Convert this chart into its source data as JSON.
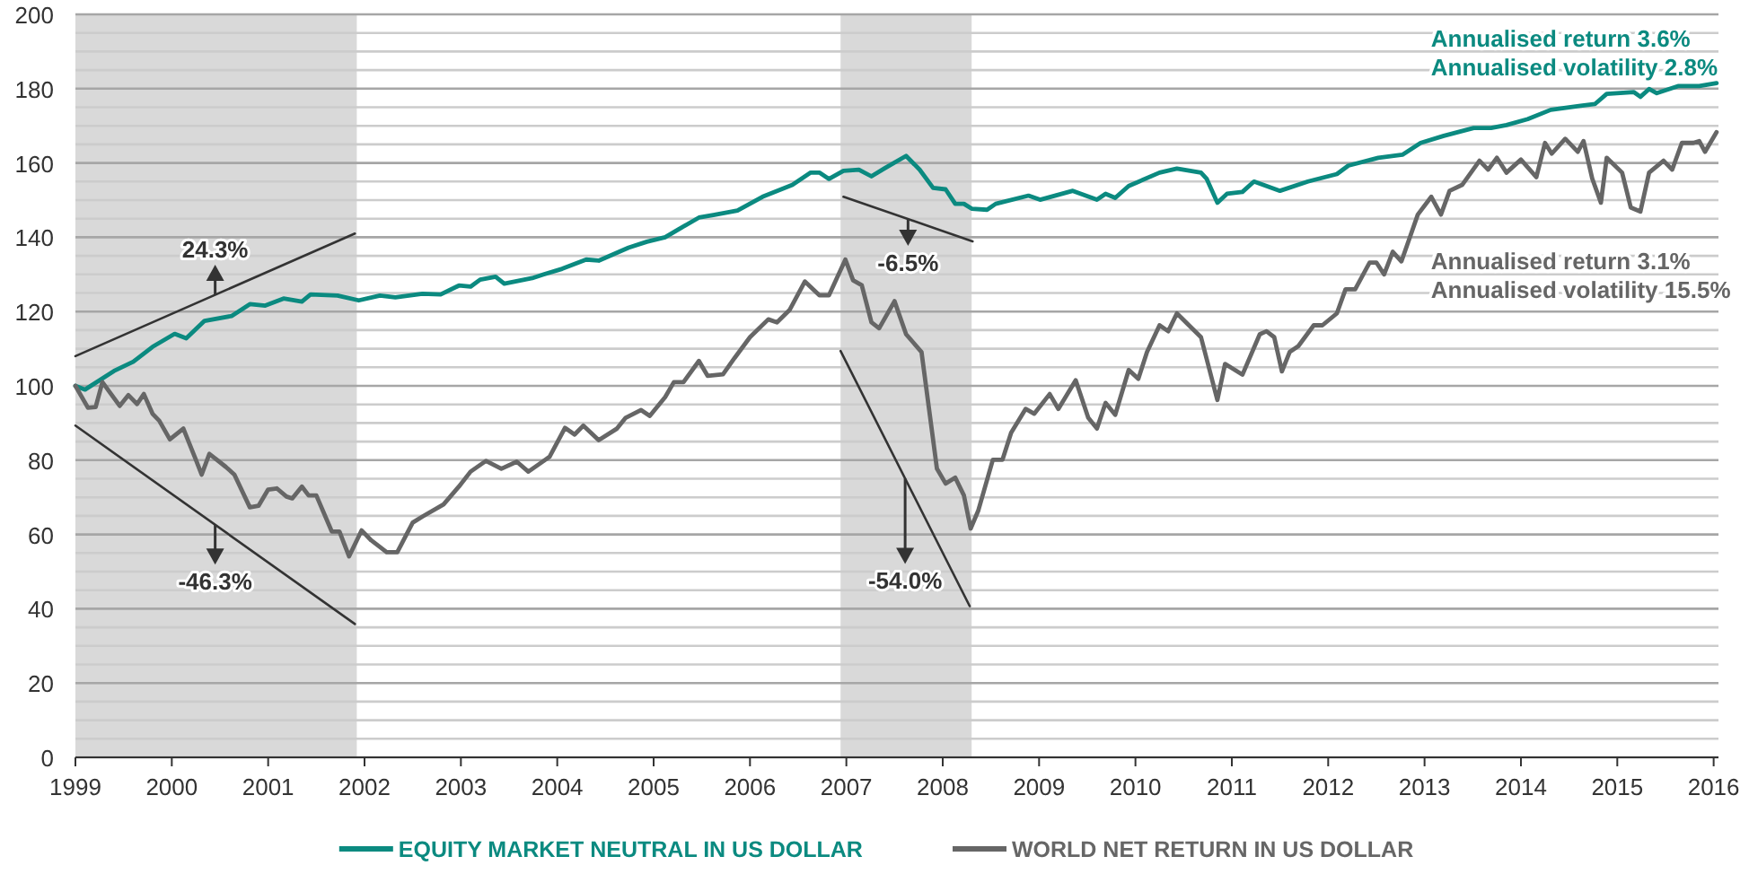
{
  "chart_data": {
    "type": "line",
    "xlim": [
      1999,
      2016.05
    ],
    "ylim": [
      0,
      200
    ],
    "xticks": [
      1999,
      2000,
      2001,
      2002,
      2003,
      2004,
      2005,
      2006,
      2007,
      2008,
      2009,
      2010,
      2011,
      2012,
      2013,
      2014,
      2015,
      2016
    ],
    "yticks": [
      0,
      {
        "value": 5,
        "label": null
      },
      {
        "value": 10,
        "label": null
      },
      {
        "value": 15,
        "label": null
      },
      20,
      {
        "value": 25,
        "label": null
      },
      {
        "value": 30,
        "label": null
      },
      {
        "value": 35,
        "label": null
      },
      40,
      {
        "value": 45,
        "label": null
      },
      {
        "value": 50,
        "label": null
      },
      {
        "value": 55,
        "label": null
      },
      60,
      {
        "value": 65,
        "label": null
      },
      {
        "value": 70,
        "label": null
      },
      {
        "value": 75,
        "label": null
      },
      80,
      {
        "value": 85,
        "label": null
      },
      {
        "value": 90,
        "label": null
      },
      {
        "value": 95,
        "label": null
      },
      100,
      {
        "value": 105,
        "label": null
      },
      {
        "value": 110,
        "label": null
      },
      {
        "value": 115,
        "label": null
      },
      120,
      {
        "value": 125,
        "label": null
      },
      {
        "value": 130,
        "label": null
      },
      {
        "value": 135,
        "label": null
      },
      140,
      {
        "value": 145,
        "label": null
      },
      {
        "value": 150,
        "label": null
      },
      {
        "value": 155,
        "label": null
      },
      160,
      {
        "value": 165,
        "label": null
      },
      {
        "value": 170,
        "label": null
      },
      {
        "value": 175,
        "label": null
      },
      180,
      {
        "value": 185,
        "label": null
      },
      {
        "value": 190,
        "label": null
      },
      {
        "value": 195,
        "label": null
      },
      200
    ],
    "grid": "y",
    "legend": "bottom",
    "bands": [
      {
        "axis": "x",
        "from": 1999,
        "to": 2001.92,
        "color": "#d9d9d9"
      },
      {
        "axis": "x",
        "from": 2006.94,
        "to": 2008.3,
        "color": "#d9d9d9"
      }
    ],
    "series": [
      {
        "name": "EQUITY MARKET NEUTRAL IN US DOLLAR",
        "color": "#0b8a80",
        "x": [
          1999,
          1999.1,
          1999.4,
          1999.6,
          1999.8,
          2000.03,
          2000.15,
          2000.34,
          2000.62,
          2000.81,
          2000.97,
          2001.16,
          2001.35,
          2001.44,
          2001.72,
          2001.94,
          2002.16,
          2002.32,
          2002.6,
          2002.79,
          2002.98,
          2003.1,
          2003.2,
          2003.36,
          2003.45,
          2003.74,
          2003.86,
          2004.05,
          2004.3,
          2004.43,
          2004.74,
          2004.93,
          2005.12,
          2005.25,
          2005.47,
          2005.62,
          2005.87,
          2006.13,
          2006.44,
          2006.63,
          2006.72,
          2006.82,
          2006.97,
          2007.13,
          2007.26,
          2007.4,
          2007.62,
          2007.76,
          2007.9,
          2008.03,
          2008.13,
          2008.22,
          2008.3,
          2008.46,
          2008.55,
          2008.89,
          2009.01,
          2009.35,
          2009.6,
          2009.69,
          2009.79,
          2009.93,
          2010.25,
          2010.43,
          2010.68,
          2010.74,
          2010.85,
          2010.95,
          2011.11,
          2011.23,
          2011.5,
          2011.79,
          2012.09,
          2012.21,
          2012.52,
          2012.77,
          2012.96,
          2013.2,
          2013.51,
          2013.69,
          2013.85,
          2014.07,
          2014.31,
          2014.62,
          2014.77,
          2014.89,
          2015.17,
          2015.24,
          2015.33,
          2015.41,
          2015.63,
          2015.85,
          2016.03
        ],
        "values": [
          100,
          99,
          104,
          106.5,
          110.5,
          114,
          112.8,
          117.5,
          118.8,
          122,
          121.6,
          123.5,
          122.7,
          124.6,
          124.3,
          123,
          124.3,
          123.8,
          124.8,
          124.6,
          127,
          126.7,
          128.6,
          129.4,
          127.5,
          129,
          130,
          131.5,
          134,
          133.7,
          137.2,
          138.8,
          140,
          142,
          145.3,
          146,
          147.2,
          150.9,
          154.1,
          157.4,
          157.4,
          155.7,
          157.9,
          158.2,
          156.4,
          158.6,
          161.9,
          158.2,
          153.3,
          152.9,
          149,
          149,
          147.7,
          147.4,
          149,
          151.2,
          150.1,
          152.5,
          150.1,
          151.7,
          150.6,
          153.8,
          157.4,
          158.5,
          157.4,
          155.7,
          149.3,
          151.7,
          152.2,
          155,
          152.5,
          155,
          157,
          159.3,
          161.4,
          162.2,
          165.4,
          167.3,
          169.4,
          169.4,
          170.2,
          171.8,
          174.3,
          175.4,
          175.9,
          178.6,
          179.1,
          177.8,
          179.9,
          178.8,
          180.7,
          180.7,
          181.5
        ]
      },
      {
        "name": "WORLD NET RETURN IN US DOLLAR",
        "color": "#666666",
        "x": [
          1999,
          1999.13,
          1999.21,
          1999.28,
          1999.46,
          1999.55,
          1999.64,
          1999.71,
          1999.8,
          1999.87,
          1999.98,
          2000.12,
          2000.25,
          2000.31,
          2000.39,
          2000.56,
          2000.65,
          2000.81,
          2000.9,
          2001,
          2001.09,
          2001.19,
          2001.25,
          2001.35,
          2001.42,
          2001.5,
          2001.66,
          2001.74,
          2001.84,
          2001.97,
          2002.07,
          2002.23,
          2002.34,
          2002.5,
          2002.6,
          2002.82,
          2002.98,
          2003.1,
          2003.26,
          2003.42,
          2003.58,
          2003.7,
          2003.92,
          2004.08,
          2004.18,
          2004.27,
          2004.43,
          2004.62,
          2004.71,
          2004.87,
          2004.96,
          2005.12,
          2005.21,
          2005.31,
          2005.47,
          2005.56,
          2005.72,
          2005.84,
          2006,
          2006.19,
          2006.28,
          2006.41,
          2006.57,
          2006.72,
          2006.82,
          2006.99,
          2007.07,
          2007.16,
          2007.26,
          2007.34,
          2007.5,
          2007.62,
          2007.78,
          2007.94,
          2008.03,
          2008.13,
          2008.22,
          2008.29,
          2008.37,
          2008.52,
          2008.62,
          2008.71,
          2008.86,
          2008.95,
          2009.11,
          2009.2,
          2009.38,
          2009.51,
          2009.6,
          2009.69,
          2009.79,
          2009.93,
          2010.03,
          2010.12,
          2010.25,
          2010.34,
          2010.43,
          2010.68,
          2010.85,
          2010.93,
          2011.11,
          2011.29,
          2011.36,
          2011.44,
          2011.52,
          2011.6,
          2011.69,
          2011.85,
          2011.94,
          2012.09,
          2012.18,
          2012.28,
          2012.43,
          2012.5,
          2012.58,
          2012.67,
          2012.76,
          2012.93,
          2013.07,
          2013.17,
          2013.26,
          2013.39,
          2013.57,
          2013.66,
          2013.75,
          2013.85,
          2014,
          2014.16,
          2014.25,
          2014.32,
          2014.46,
          2014.59,
          2014.65,
          2014.74,
          2014.83,
          2014.89,
          2015.05,
          2015.14,
          2015.24,
          2015.33,
          2015.48,
          2015.57,
          2015.67,
          2015.79,
          2015.85,
          2015.91,
          2016.03
        ],
        "values": [
          100,
          94.1,
          94.3,
          101,
          94.6,
          97.5,
          95.1,
          97.8,
          92.5,
          90.6,
          85.6,
          88.5,
          80.1,
          76.1,
          81.7,
          78.2,
          76.1,
          67.3,
          67.7,
          72.1,
          72.4,
          70.2,
          69.7,
          72.9,
          70.5,
          70.5,
          60.8,
          60.8,
          54.1,
          61.1,
          58.4,
          55.2,
          55.2,
          63.2,
          64.8,
          68.1,
          72.9,
          76.9,
          79.8,
          77.7,
          79.6,
          76.9,
          80.9,
          88.7,
          86.9,
          89.3,
          85.4,
          88.5,
          91.4,
          93.5,
          91.9,
          97,
          101,
          101,
          106.7,
          102.7,
          103.1,
          107.5,
          113.1,
          117.9,
          117.1,
          120.4,
          128.1,
          124.4,
          124.4,
          134,
          128.4,
          127.1,
          117.1,
          115.5,
          122.8,
          113.9,
          109.1,
          77.7,
          73.7,
          75.3,
          70.5,
          61.6,
          66.5,
          80.1,
          80.1,
          87.4,
          93.8,
          92.5,
          97.8,
          93.8,
          101.5,
          91.4,
          88.5,
          95.4,
          92.2,
          104.3,
          101.9,
          109.1,
          116.3,
          114.7,
          119.5,
          113.1,
          96.2,
          105.9,
          103,
          113.9,
          114.7,
          113.1,
          103.9,
          109.1,
          110.7,
          116.3,
          116.3,
          119.5,
          126,
          126,
          133.2,
          133.2,
          130,
          136.1,
          133.5,
          146.1,
          150.9,
          146.1,
          152.5,
          154.1,
          160.6,
          158.2,
          161.4,
          157.4,
          160.9,
          156.2,
          165.4,
          162.5,
          166.5,
          163,
          165.9,
          155.8,
          149.3,
          161.4,
          157.4,
          148,
          146.9,
          157.4,
          160.6,
          158.2,
          165.4,
          165.4,
          165.9,
          163,
          168.3
        ]
      },
      {
        "name": "24.3%",
        "color": "#333333",
        "x": [
          1999,
          2001.9
        ],
        "values": [
          108,
          141
        ]
      },
      {
        "name": "-46.3%",
        "color": "#333333",
        "x": [
          1999,
          2001.9
        ],
        "values": [
          89.3,
          35.9
        ]
      },
      {
        "name": "-6.5%",
        "color": "#333333",
        "x": [
          2006.97,
          2008.31
        ],
        "values": [
          150.9,
          138.9
        ]
      },
      {
        "name": "-54.0%",
        "color": "#333333",
        "x": [
          2006.94,
          2008.28
        ],
        "values": [
          109.4,
          40.7
        ]
      }
    ],
    "annotations": [
      "Annualised return 3.6%",
      "Annualised volatility 2.8%",
      "Annualised return 3.1%",
      "Annualised volatility 15.5%"
    ]
  }
}
